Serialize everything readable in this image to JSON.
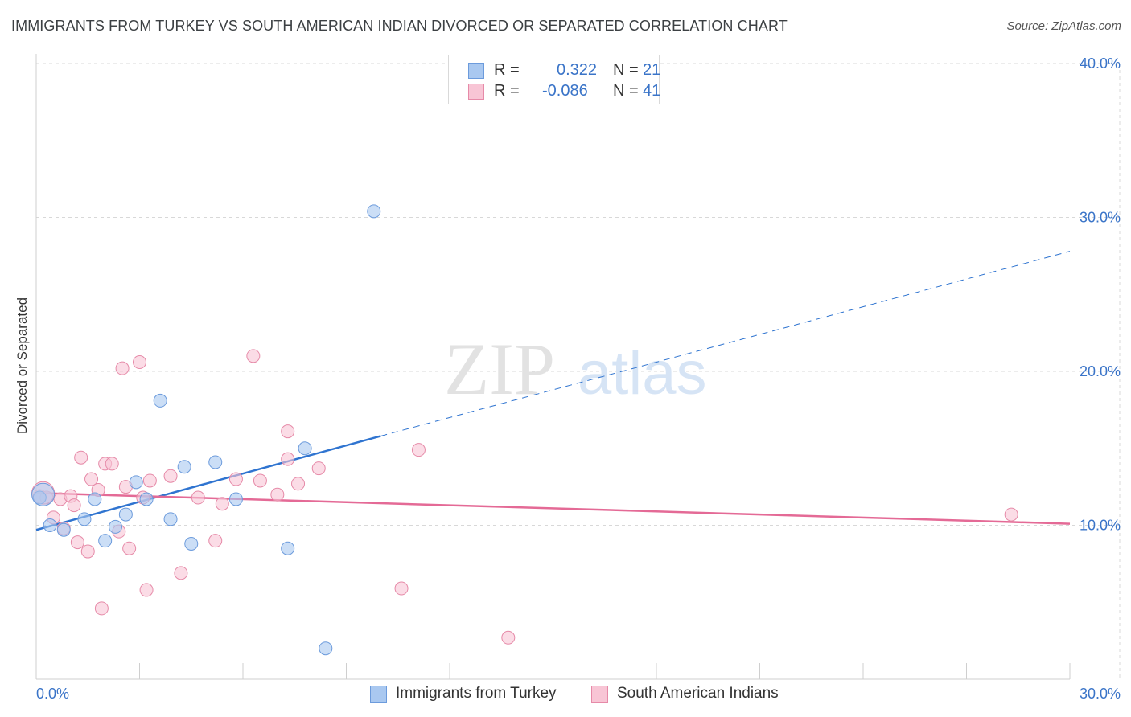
{
  "title": "IMMIGRANTS FROM TURKEY VS SOUTH AMERICAN INDIAN DIVORCED OR SEPARATED CORRELATION CHART",
  "source": "Source: ZipAtlas.com",
  "watermark": {
    "zip": "ZIP",
    "atlas": "atlas"
  },
  "legend": {
    "rows": [
      {
        "r_label": "R =",
        "r_value": "0.322",
        "n_label": "N =",
        "n_value": "21",
        "color": "#a9c8f0",
        "border": "#6c9bdc"
      },
      {
        "r_label": "R =",
        "r_value": "-0.086",
        "n_label": "N =",
        "n_value": "41",
        "color": "#f8c5d5",
        "border": "#e68aa8"
      }
    ]
  },
  "chart_data": {
    "type": "scatter",
    "title": "IMMIGRANTS FROM TURKEY VS SOUTH AMERICAN INDIAN DIVORCED OR SEPARATED CORRELATION CHART",
    "xlabel": "",
    "ylabel": "Divorced or Separated",
    "xlim": [
      0,
      30
    ],
    "ylim": [
      0,
      40
    ],
    "x_tick_labels": [
      "0.0%",
      "30.0%"
    ],
    "y_tick_values": [
      10,
      20,
      30,
      40
    ],
    "y_tick_labels": [
      "10.0%",
      "20.0%",
      "30.0%",
      "40.0%"
    ],
    "grid": true,
    "legend_position": "top-center",
    "series": [
      {
        "name": "Immigrants from Turkey",
        "color": "#a9c8f0",
        "stroke": "#6c9bdc",
        "line_color": "#2f74d0",
        "R": 0.322,
        "N": 21,
        "trend": {
          "x0": 0,
          "y0": 9.7,
          "x1": 10.0,
          "y1": 15.8,
          "x_dash_end": 30,
          "y_dash_end": 27.8
        },
        "points": [
          [
            0.1,
            11.8
          ],
          [
            0.4,
            10.0
          ],
          [
            0.8,
            9.7
          ],
          [
            1.4,
            10.4
          ],
          [
            1.7,
            11.7
          ],
          [
            2.0,
            9.0
          ],
          [
            2.3,
            9.9
          ],
          [
            2.6,
            10.7
          ],
          [
            2.9,
            12.8
          ],
          [
            3.2,
            11.7
          ],
          [
            3.6,
            18.1
          ],
          [
            3.9,
            10.4
          ],
          [
            4.3,
            13.8
          ],
          [
            4.5,
            8.8
          ],
          [
            5.2,
            14.1
          ],
          [
            5.8,
            11.7
          ],
          [
            7.3,
            8.5
          ],
          [
            7.8,
            15.0
          ],
          [
            8.4,
            2.0
          ],
          [
            9.8,
            30.4
          ],
          [
            0.2,
            12.0
          ]
        ]
      },
      {
        "name": "South American Indians",
        "color": "#f8c5d5",
        "stroke": "#e68aa8",
        "line_color": "#e46a96",
        "R": -0.086,
        "N": 41,
        "trend": {
          "x0": 0,
          "y0": 12.1,
          "x1": 30,
          "y1": 10.1
        },
        "points": [
          [
            0.1,
            11.9
          ],
          [
            0.3,
            11.8
          ],
          [
            0.5,
            10.5
          ],
          [
            0.7,
            11.7
          ],
          [
            0.8,
            9.8
          ],
          [
            1.0,
            11.9
          ],
          [
            1.1,
            11.3
          ],
          [
            1.2,
            8.9
          ],
          [
            1.3,
            14.4
          ],
          [
            1.5,
            8.3
          ],
          [
            1.6,
            13.0
          ],
          [
            1.8,
            12.3
          ],
          [
            1.9,
            4.6
          ],
          [
            2.0,
            14.0
          ],
          [
            2.2,
            14.0
          ],
          [
            2.4,
            9.6
          ],
          [
            2.5,
            20.2
          ],
          [
            2.6,
            12.5
          ],
          [
            2.7,
            8.5
          ],
          [
            3.0,
            20.6
          ],
          [
            3.1,
            11.8
          ],
          [
            3.2,
            5.8
          ],
          [
            3.3,
            12.9
          ],
          [
            3.9,
            13.2
          ],
          [
            4.2,
            6.9
          ],
          [
            4.7,
            11.8
          ],
          [
            5.2,
            9.0
          ],
          [
            5.4,
            11.4
          ],
          [
            5.8,
            13.0
          ],
          [
            6.3,
            21.0
          ],
          [
            6.5,
            12.9
          ],
          [
            7.0,
            12.0
          ],
          [
            7.3,
            16.1
          ],
          [
            7.3,
            14.3
          ],
          [
            7.6,
            12.7
          ],
          [
            8.2,
            13.7
          ],
          [
            10.6,
            5.9
          ],
          [
            11.1,
            14.9
          ],
          [
            13.7,
            2.7
          ],
          [
            28.3,
            10.7
          ],
          [
            0.2,
            12.1
          ]
        ]
      }
    ]
  }
}
